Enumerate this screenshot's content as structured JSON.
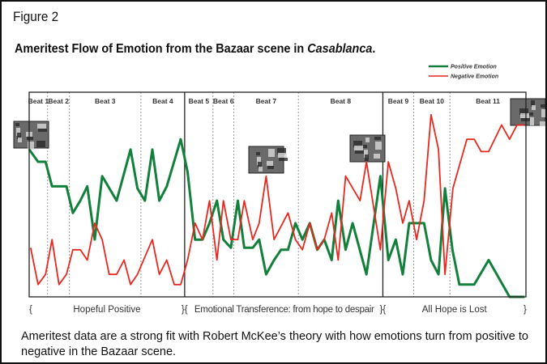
{
  "figure_label": "Figure 2",
  "title": "Ameritest Flow of Emotion from the Bazaar scene in ",
  "title_italic": "Casablanca",
  "title_end": ".",
  "caption": "Ameritest data are a strong fit with Robert McKee’s theory with how emotions turn from positive to negative in the Bazaar scene.",
  "chart_data": {
    "type": "line",
    "title": "Ameritest Flow of Emotion from the Bazaar scene in Casablanca.",
    "xlabel": "",
    "ylabel": "",
    "xlim": [
      0,
      100
    ],
    "ylim": [
      0,
      100
    ],
    "grid": false,
    "legend_position": "top-right",
    "beats": [
      {
        "label": "Beat 1",
        "start": 0,
        "end": 3.7
      },
      {
        "label": "Beat 2",
        "start": 3.7,
        "end": 8.1
      },
      {
        "label": "Beat 3",
        "start": 8.1,
        "end": 22.5
      },
      {
        "label": "Beat 4",
        "start": 22.5,
        "end": 31.3
      },
      {
        "label": "Beat 5",
        "start": 31.3,
        "end": 37.0
      },
      {
        "label": "Beat 6",
        "start": 37.0,
        "end": 41.2
      },
      {
        "label": "Beat 7",
        "start": 41.2,
        "end": 54.2
      },
      {
        "label": "Beat 8",
        "start": 54.2,
        "end": 71.2
      },
      {
        "label": "Beat 9",
        "start": 71.2,
        "end": 77.4
      },
      {
        "label": "Beat 10",
        "start": 77.4,
        "end": 84.7
      },
      {
        "label": "Beat 11",
        "start": 84.7,
        "end": 100
      }
    ],
    "acts": [
      {
        "open": "{",
        "label": "Hopeful Positive",
        "start": 0,
        "end": 31.3
      },
      {
        "open": "}{",
        "label": "Emotional Transference: from hope to despair",
        "start": 31.3,
        "end": 71.2
      },
      {
        "open": "}{",
        "label": "All Hope is Lost",
        "start": 71.2,
        "end": 100,
        "close": "}"
      }
    ],
    "series": [
      {
        "name": "Positive Emotion",
        "color": "#12803a",
        "x": [
          0,
          1.8,
          3.3,
          4.6,
          7.5,
          8.8,
          10.3,
          11.7,
          13.2,
          14.7,
          17.6,
          20.4,
          21.8,
          23.3,
          24.8,
          26.2,
          27.7,
          30.5,
          31.9,
          33.4,
          34.9,
          36.3,
          37.8,
          39.1,
          40.6,
          42.0,
          43.3,
          45.0,
          46.3,
          47.7,
          49.3,
          50.7,
          52.1,
          53.6,
          55.0,
          56.5,
          58.0,
          59.4,
          60.9,
          62.2,
          63.7,
          65.1,
          67.9,
          70.7,
          72.3,
          73.8,
          75.2,
          76.5,
          79.5,
          80.9,
          82.4,
          83.7,
          85.2,
          86.6,
          89.6,
          92.5,
          96.7,
          99.7
        ],
        "y": [
          72,
          66,
          66,
          54,
          54,
          41,
          47,
          54,
          28,
          59,
          47,
          72,
          53,
          47,
          72,
          47,
          54,
          77,
          61,
          28,
          28,
          36,
          47,
          28,
          24,
          47,
          24,
          24,
          28,
          11,
          18,
          23,
          23,
          36,
          28,
          36,
          23,
          28,
          18,
          47,
          23,
          36,
          11,
          59,
          18,
          28,
          11,
          36,
          36,
          18,
          11,
          53,
          23,
          6,
          6,
          18,
          0,
          0
        ]
      },
      {
        "name": "Negative Emotion",
        "color": "#e8281e",
        "x": [
          0.3,
          1.8,
          3.3,
          4.6,
          6.0,
          7.5,
          8.8,
          10.3,
          11.7,
          13.2,
          14.7,
          16.1,
          17.6,
          19.1,
          20.4,
          21.8,
          24.8,
          26.2,
          27.7,
          29.2,
          30.5,
          31.9,
          33.4,
          34.9,
          36.3,
          37.8,
          39.1,
          40.6,
          42.0,
          43.3,
          45.0,
          46.3,
          47.7,
          49.3,
          52.1,
          53.6,
          55.0,
          56.5,
          58.0,
          59.4,
          60.9,
          62.2,
          63.7,
          66.6,
          67.9,
          70.7,
          72.3,
          73.8,
          75.2,
          76.5,
          78.0,
          79.5,
          80.9,
          82.4,
          83.7,
          85.3,
          88.1,
          89.6,
          91.0,
          92.5,
          95.1,
          96.7,
          98.2,
          99.7
        ],
        "y": [
          24,
          6,
          11,
          28,
          6,
          11,
          23,
          23,
          18,
          36,
          28,
          11,
          11,
          18,
          6,
          11,
          28,
          11,
          18,
          6,
          6,
          18,
          36,
          28,
          47,
          18,
          47,
          28,
          28,
          47,
          28,
          36,
          59,
          28,
          41,
          28,
          23,
          36,
          23,
          28,
          41,
          18,
          59,
          47,
          66,
          23,
          66,
          53,
          36,
          47,
          28,
          47,
          89,
          72,
          11,
          53,
          77,
          77,
          71,
          71,
          84,
          77,
          84,
          84
        ]
      }
    ]
  }
}
